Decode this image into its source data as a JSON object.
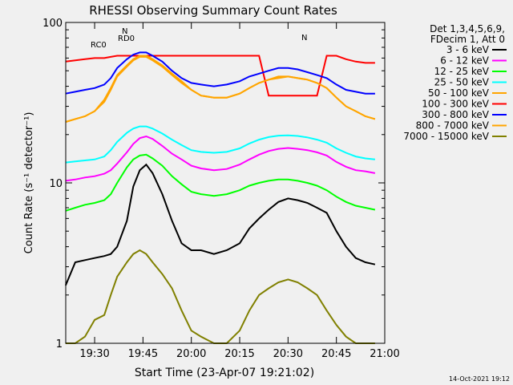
{
  "chart_data": {
    "type": "line",
    "title": "RHESSI Observing Summary Count Rates",
    "xlabel": "Start Time (23-Apr-07 19:21:02)",
    "ylabel": "Count Rate (s⁻¹ detector⁻¹)",
    "x_ticks": [
      "19:30",
      "19:45",
      "20:00",
      "20:15",
      "20:30",
      "20:45",
      "21:00"
    ],
    "xlim": [
      "19:21:02",
      "21:00:00"
    ],
    "yscale": "log",
    "ylim": [
      1,
      100
    ],
    "y_ticks": [
      "1",
      "10",
      "100"
    ],
    "legend_header": [
      "Det 1,3,4,5,6,9,",
      "FDecim 1, Att 0"
    ],
    "legend_position": "top-right",
    "series": [
      {
        "name": "3 - 6 keV",
        "color": "#000000",
        "x": [
          "19:21",
          "19:24",
          "19:27",
          "19:30",
          "19:33",
          "19:35",
          "19:37",
          "19:40",
          "19:42",
          "19:44",
          "19:46",
          "19:48",
          "19:51",
          "19:54",
          "19:57",
          "20:00",
          "20:03",
          "20:07",
          "20:11",
          "20:15",
          "20:18",
          "20:21",
          "20:24",
          "20:27",
          "20:30",
          "20:33",
          "20:36",
          "20:39",
          "20:42",
          "20:45",
          "20:48",
          "20:51",
          "20:54",
          "20:57"
        ],
        "values": [
          2.3,
          3.2,
          3.3,
          3.4,
          3.5,
          3.6,
          4.0,
          5.8,
          9.5,
          12.0,
          13.0,
          11.5,
          8.5,
          5.8,
          4.2,
          3.8,
          3.8,
          3.6,
          3.8,
          4.2,
          5.2,
          6.0,
          6.8,
          7.6,
          8.0,
          7.8,
          7.5,
          7.0,
          6.5,
          5.0,
          4.0,
          3.4,
          3.2,
          3.1
        ]
      },
      {
        "name": "6 - 12 keV",
        "color": "#ff00ff",
        "x": [
          "19:21",
          "19:24",
          "19:27",
          "19:30",
          "19:33",
          "19:35",
          "19:37",
          "19:40",
          "19:42",
          "19:44",
          "19:46",
          "19:48",
          "19:51",
          "19:54",
          "19:57",
          "20:00",
          "20:03",
          "20:07",
          "20:11",
          "20:15",
          "20:18",
          "20:21",
          "20:24",
          "20:27",
          "20:30",
          "20:33",
          "20:36",
          "20:39",
          "20:42",
          "20:45",
          "20:48",
          "20:51",
          "20:54",
          "20:57"
        ],
        "values": [
          10.3,
          10.5,
          10.8,
          11.0,
          11.4,
          12.0,
          13.2,
          15.5,
          17.5,
          19.0,
          19.5,
          18.8,
          17.0,
          15.2,
          14.0,
          12.8,
          12.3,
          12.0,
          12.2,
          13.0,
          14.0,
          15.0,
          15.8,
          16.3,
          16.5,
          16.3,
          16.0,
          15.5,
          14.8,
          13.5,
          12.6,
          12.0,
          11.8,
          11.5
        ]
      },
      {
        "name": "12 - 25 keV",
        "color": "#00ff00",
        "x": [
          "19:21",
          "19:24",
          "19:27",
          "19:30",
          "19:33",
          "19:35",
          "19:37",
          "19:40",
          "19:42",
          "19:44",
          "19:46",
          "19:48",
          "19:51",
          "19:54",
          "19:57",
          "20:00",
          "20:03",
          "20:07",
          "20:11",
          "20:15",
          "20:18",
          "20:21",
          "20:24",
          "20:27",
          "20:30",
          "20:33",
          "20:36",
          "20:39",
          "20:42",
          "20:45",
          "20:48",
          "20:51",
          "20:54",
          "20:57"
        ],
        "values": [
          6.7,
          7.0,
          7.3,
          7.5,
          7.8,
          8.5,
          10.0,
          12.5,
          14.0,
          14.8,
          15.0,
          14.2,
          12.8,
          11.0,
          9.8,
          8.8,
          8.5,
          8.3,
          8.5,
          9.0,
          9.6,
          10.0,
          10.3,
          10.5,
          10.5,
          10.3,
          10.0,
          9.6,
          9.0,
          8.2,
          7.6,
          7.2,
          7.0,
          6.8
        ]
      },
      {
        "name": "25 - 50 keV",
        "color": "#00ffff",
        "x": [
          "19:21",
          "19:24",
          "19:27",
          "19:30",
          "19:33",
          "19:35",
          "19:37",
          "19:40",
          "19:42",
          "19:44",
          "19:46",
          "19:48",
          "19:51",
          "19:54",
          "19:57",
          "20:00",
          "20:03",
          "20:07",
          "20:11",
          "20:15",
          "20:18",
          "20:21",
          "20:24",
          "20:27",
          "20:30",
          "20:33",
          "20:36",
          "20:39",
          "20:42",
          "20:45",
          "20:48",
          "20:51",
          "20:54",
          "20:57"
        ],
        "values": [
          13.4,
          13.6,
          13.8,
          14.0,
          14.6,
          16.0,
          18.0,
          20.5,
          21.8,
          22.5,
          22.5,
          21.8,
          20.3,
          18.6,
          17.2,
          16.0,
          15.6,
          15.4,
          15.6,
          16.4,
          17.6,
          18.6,
          19.3,
          19.7,
          19.8,
          19.6,
          19.2,
          18.6,
          17.8,
          16.4,
          15.4,
          14.6,
          14.2,
          14.0
        ]
      },
      {
        "name": "50 - 100 keV",
        "color": "#ffa500",
        "x": [
          "19:21",
          "19:24",
          "19:27",
          "19:30",
          "19:33",
          "19:35",
          "19:37",
          "19:40",
          "19:42",
          "19:44",
          "19:46",
          "19:48",
          "19:51",
          "19:54",
          "19:57",
          "20:00",
          "20:03",
          "20:07",
          "20:11",
          "20:15",
          "20:18",
          "20:21",
          "20:24",
          "20:27",
          "20:30",
          "20:33",
          "20:36",
          "20:39",
          "20:42",
          "20:45",
          "20:48",
          "20:51",
          "20:54",
          "20:57"
        ],
        "values": [
          24,
          25,
          26,
          28,
          32,
          38,
          46,
          53,
          58,
          61,
          61,
          58,
          53,
          47,
          42,
          38,
          35,
          34,
          34,
          36,
          39,
          42,
          44,
          45,
          46,
          45,
          44,
          42,
          39,
          34,
          30,
          28,
          26,
          25
        ]
      },
      {
        "name": "100 - 300 keV",
        "color": "#ff0000",
        "x": [
          "19:21",
          "19:24",
          "19:27",
          "19:30",
          "19:33",
          "19:35",
          "19:37",
          "19:40",
          "19:42",
          "19:44",
          "19:46",
          "19:48",
          "19:51",
          "19:54",
          "19:57",
          "20:00",
          "20:03",
          "20:07",
          "20:11",
          "20:15",
          "20:18",
          "20:21",
          "20:24",
          "20:27",
          "20:30",
          "20:33",
          "20:36",
          "20:39",
          "20:42",
          "20:45",
          "20:48",
          "20:51",
          "20:54",
          "20:57"
        ],
        "values": [
          57,
          58,
          59,
          60,
          60,
          61,
          62,
          62,
          62,
          62,
          62,
          62,
          62,
          62,
          62,
          62,
          62,
          62,
          62,
          62,
          62,
          62,
          35,
          35,
          35,
          35,
          35,
          35,
          62,
          62,
          59,
          57,
          56,
          56
        ]
      },
      {
        "name": "300 - 800 keV",
        "color": "#0000ff",
        "x": [
          "19:21",
          "19:24",
          "19:27",
          "19:30",
          "19:33",
          "19:35",
          "19:37",
          "19:40",
          "19:42",
          "19:44",
          "19:46",
          "19:48",
          "19:51",
          "19:54",
          "19:57",
          "20:00",
          "20:03",
          "20:07",
          "20:11",
          "20:15",
          "20:18",
          "20:21",
          "20:24",
          "20:27",
          "20:30",
          "20:33",
          "20:36",
          "20:39",
          "20:42",
          "20:45",
          "20:48",
          "20:51",
          "20:54",
          "20:57"
        ],
        "values": [
          36,
          37,
          38,
          39,
          41,
          45,
          52,
          59,
          63,
          65,
          65,
          62,
          57,
          50,
          45,
          42,
          41,
          40,
          41,
          43,
          46,
          48,
          50,
          52,
          52,
          51,
          49,
          47,
          45,
          41,
          38,
          37,
          36,
          36
        ]
      },
      {
        "name": "800 - 7000 keV",
        "color": "#ffa500",
        "x": [
          "19:21",
          "19:24",
          "19:27",
          "19:30",
          "19:33",
          "19:35",
          "19:37",
          "19:40",
          "19:42",
          "19:44",
          "19:46",
          "19:48",
          "19:51",
          "19:54",
          "19:57",
          "20:00",
          "20:03",
          "20:07",
          "20:11",
          "20:15",
          "20:18",
          "20:21",
          "20:24",
          "20:27",
          "20:30",
          "20:33",
          "20:36",
          "20:39",
          "20:42",
          "20:45",
          "20:48",
          "20:51",
          "20:54",
          "20:57"
        ],
        "values": [
          24,
          25,
          26,
          28,
          33,
          39,
          47,
          54,
          59,
          62,
          62,
          59,
          54,
          48,
          43,
          38,
          35,
          34,
          34,
          36,
          39,
          42,
          44,
          46,
          46,
          45,
          44,
          42,
          39,
          34,
          30,
          28,
          26,
          25
        ]
      },
      {
        "name": "7000 - 15000 keV",
        "color": "#808000",
        "x": [
          "19:21",
          "19:24",
          "19:27",
          "19:30",
          "19:33",
          "19:35",
          "19:37",
          "19:40",
          "19:42",
          "19:44",
          "19:46",
          "19:48",
          "19:51",
          "19:54",
          "19:57",
          "20:00",
          "20:03",
          "20:07",
          "20:11",
          "20:15",
          "20:18",
          "20:21",
          "20:24",
          "20:27",
          "20:30",
          "20:33",
          "20:36",
          "20:39",
          "20:42",
          "20:45",
          "20:48",
          "20:51",
          "20:54",
          "20:57"
        ],
        "values": [
          1.0,
          1.0,
          1.1,
          1.4,
          1.5,
          2.0,
          2.6,
          3.2,
          3.6,
          3.8,
          3.6,
          3.2,
          2.7,
          2.2,
          1.6,
          1.2,
          1.1,
          1.0,
          1.0,
          1.2,
          1.6,
          2.0,
          2.2,
          2.4,
          2.5,
          2.4,
          2.2,
          2.0,
          1.6,
          1.3,
          1.1,
          1.0,
          1.0,
          1.0
        ]
      }
    ],
    "annotations": [
      "N",
      "RD0",
      "RC0",
      "N"
    ]
  },
  "timestamp": "14-Oct-2021 19:12"
}
